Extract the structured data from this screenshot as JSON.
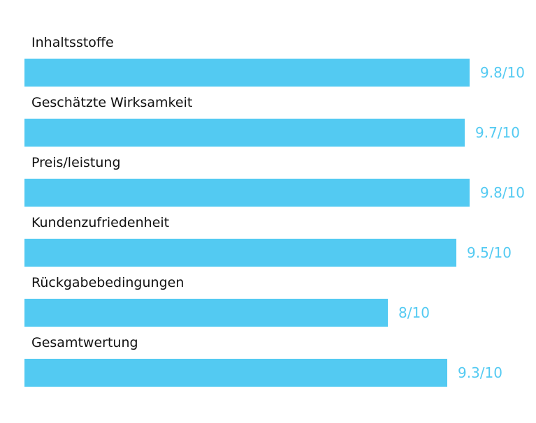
{
  "chart_data": {
    "type": "bar",
    "orientation": "horizontal",
    "scale_max": 10,
    "bar_color": "#53caf2",
    "value_color": "#53caf2",
    "label_color": "#111111",
    "categories": [
      "Inhaltsstoffe",
      "Geschätzte Wirksamkeit",
      "Preis/leistung",
      "Kundenzufriedenheit",
      "Rückgabebedingungen",
      "Gesamtwertung"
    ],
    "values": [
      9.8,
      9.7,
      9.8,
      9.5,
      8,
      9.3
    ],
    "value_labels": [
      "9.8/10",
      "9.7/10",
      "9.8/10",
      "9.5/10",
      "8/10",
      "9.3/10"
    ]
  }
}
